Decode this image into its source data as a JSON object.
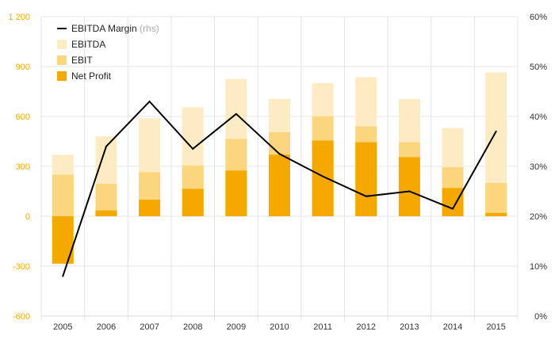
{
  "chart_data": {
    "type": "bar",
    "categories": [
      "2005",
      "2006",
      "2007",
      "2008",
      "2009",
      "2010",
      "2011",
      "2012",
      "2013",
      "2014",
      "2015"
    ],
    "series": [
      {
        "name": "EBITDA",
        "kind": "bar",
        "values": [
          370,
          480,
          590,
          655,
          825,
          705,
          800,
          835,
          705,
          530,
          865
        ],
        "color": "#FDEBC4"
      },
      {
        "name": "EBIT",
        "kind": "bar",
        "values": [
          250,
          195,
          265,
          305,
          465,
          505,
          600,
          540,
          445,
          295,
          200
        ],
        "color": "#FBD67F"
      },
      {
        "name": "Net Profit",
        "kind": "bar",
        "values": [
          -285,
          35,
          100,
          165,
          275,
          370,
          455,
          445,
          355,
          170,
          20
        ],
        "color": "#F5A800"
      },
      {
        "name": "EBITDA Margin",
        "name_suffix": "(rhs)",
        "kind": "line",
        "axis": "right",
        "values": [
          8,
          34,
          43,
          33.5,
          40.5,
          32.5,
          28,
          24,
          25,
          21.5,
          37
        ],
        "color": "#000000"
      }
    ],
    "left_axis": {
      "ylim": [
        -600,
        1200
      ],
      "ticks": [
        -600,
        -300,
        0,
        300,
        600,
        900,
        1200
      ],
      "tick_labels": [
        "-600",
        "-300",
        "0",
        "300",
        "600",
        "900",
        "1 200"
      ],
      "color": "#F2A900"
    },
    "right_axis": {
      "ylim": [
        0,
        60
      ],
      "ticks": [
        0,
        10,
        20,
        30,
        40,
        50,
        60
      ],
      "tick_labels": [
        "0%",
        "10%",
        "20%",
        "30%",
        "40%",
        "50%",
        "60%"
      ]
    },
    "grid": true,
    "legend_position": "top-left"
  }
}
